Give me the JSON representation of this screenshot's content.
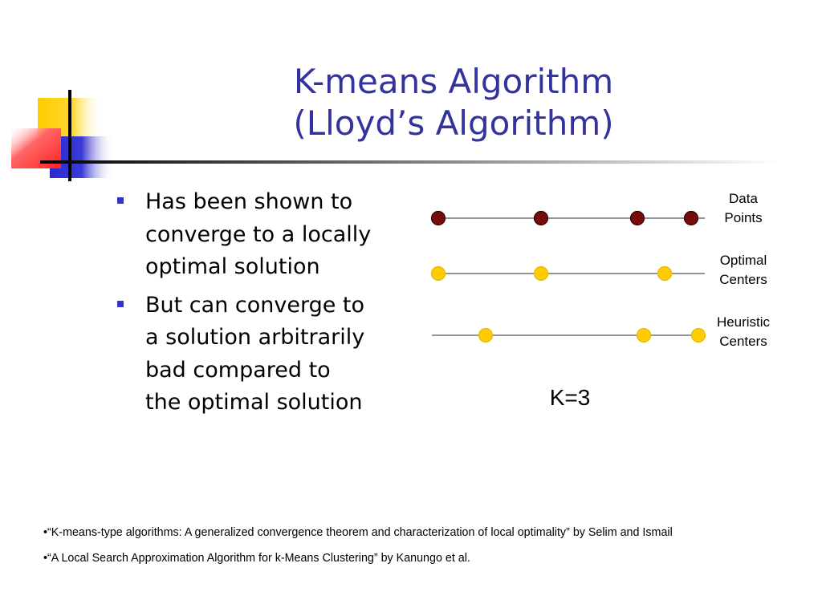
{
  "slide": {
    "title_line1": "K-means Algorithm",
    "title_line2": "(Lloyd’s Algorithm)",
    "bullets": [
      {
        "lines": [
          "Has been shown to",
          "converge to a locally",
          "optimal solution"
        ]
      },
      {
        "lines": [
          "But can converge to",
          "a solution arbitrarily",
          "bad compared to",
          "the optimal solution"
        ]
      }
    ],
    "footnotes": [
      "•“K-means-type algorithms: A generalized convergence theorem and characterization of local optimality” by Selim and Ismail",
      "•“A Local Search Approximation Algorithm for k-Means Clustering” by Kanungo et al."
    ]
  },
  "diagram": {
    "k_label": "K=3",
    "rows": [
      {
        "label_lines": [
          "Data",
          "Points"
        ],
        "point_color": "#7a0a0a",
        "point_count": 4
      },
      {
        "label_lines": [
          "Optimal",
          "Centers"
        ],
        "point_color": "#ffcc00",
        "point_count": 3
      },
      {
        "label_lines": [
          "Heuristic",
          "Centers"
        ],
        "point_color": "#ffcc00",
        "point_count": 3
      }
    ]
  },
  "colors": {
    "title": "#33339f",
    "bullet": "#3333cc",
    "deco_yellow": "#ffcc00",
    "deco_blue": "#3333cc",
    "deco_red": "#ff3333"
  }
}
